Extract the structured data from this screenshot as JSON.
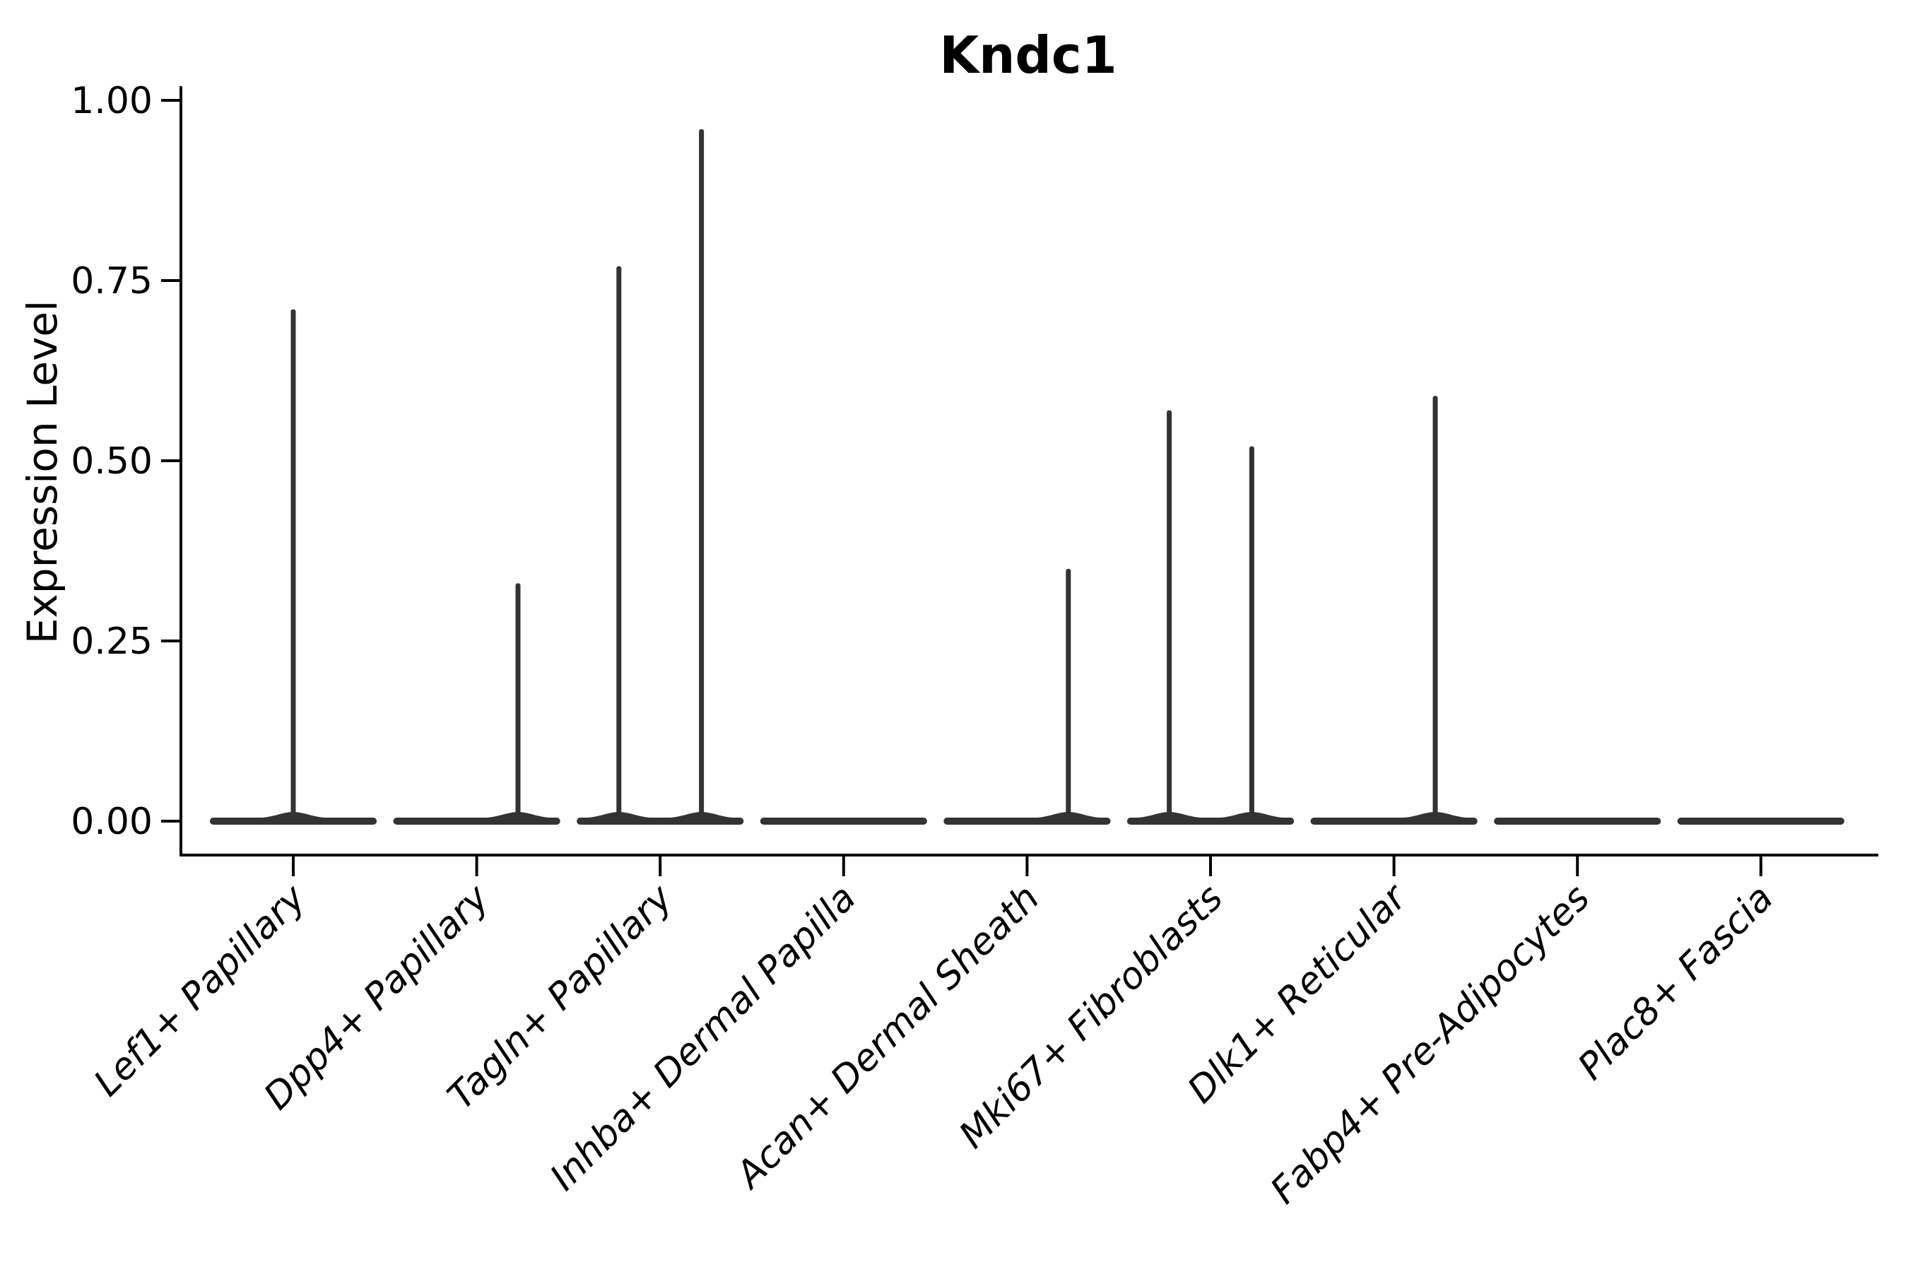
{
  "chart_data": {
    "type": "violin",
    "title": "Kndc1",
    "xlabel": "",
    "ylabel": "Expression Level",
    "ylim": [
      -0.05,
      1.05
    ],
    "grid": false,
    "legend_position": "none",
    "background_color": "#ffffff",
    "axis_color": "#000000",
    "violin_color": "#333333",
    "ytick_labels": [
      "0.00",
      "0.25",
      "0.50",
      "0.75",
      "1.00"
    ],
    "ytick_values": [
      0.0,
      0.25,
      0.5,
      0.75,
      1.0
    ],
    "categories": [
      "Lef1+ Papillary",
      "Dpp4+ Papillary",
      "Tagln+ Papillary",
      "Inhba+ Dermal Papilla",
      "Acan+ Dermal Sheath",
      "Mki67+ Fibroblasts",
      "Dlk1+ Reticular",
      "Fabp4+ Pre-Adipocytes",
      "Plac8+ Fascia"
    ],
    "violins": [
      {
        "category": "Lef1+ Papillary",
        "base_halfwidth": 0.455,
        "spikes": [
          {
            "offset": 0.0,
            "max": 0.71
          }
        ]
      },
      {
        "category": "Dpp4+ Papillary",
        "base_halfwidth": 0.455,
        "spikes": [
          {
            "offset": 0.225,
            "max": 0.33
          }
        ]
      },
      {
        "category": "Tagln+ Papillary",
        "base_halfwidth": 0.455,
        "spikes": [
          {
            "offset": -0.225,
            "max": 0.77
          },
          {
            "offset": 0.225,
            "max": 0.96
          }
        ]
      },
      {
        "category": "Inhba+ Dermal Papilla",
        "base_halfwidth": 0.455,
        "spikes": []
      },
      {
        "category": "Acan+ Dermal Sheath",
        "base_halfwidth": 0.455,
        "spikes": [
          {
            "offset": 0.225,
            "max": 0.35
          }
        ]
      },
      {
        "category": "Mki67+ Fibroblasts",
        "base_halfwidth": 0.455,
        "spikes": [
          {
            "offset": -0.225,
            "max": 0.57
          },
          {
            "offset": 0.225,
            "max": 0.52
          }
        ]
      },
      {
        "category": "Dlk1+ Reticular",
        "base_halfwidth": 0.455,
        "spikes": [
          {
            "offset": 0.225,
            "max": 0.59
          }
        ]
      },
      {
        "category": "Fabp4+ Pre-Adipocytes",
        "base_halfwidth": 0.455,
        "spikes": []
      },
      {
        "category": "Plac8+ Fascia",
        "base_halfwidth": 0.455,
        "spikes": []
      }
    ]
  }
}
